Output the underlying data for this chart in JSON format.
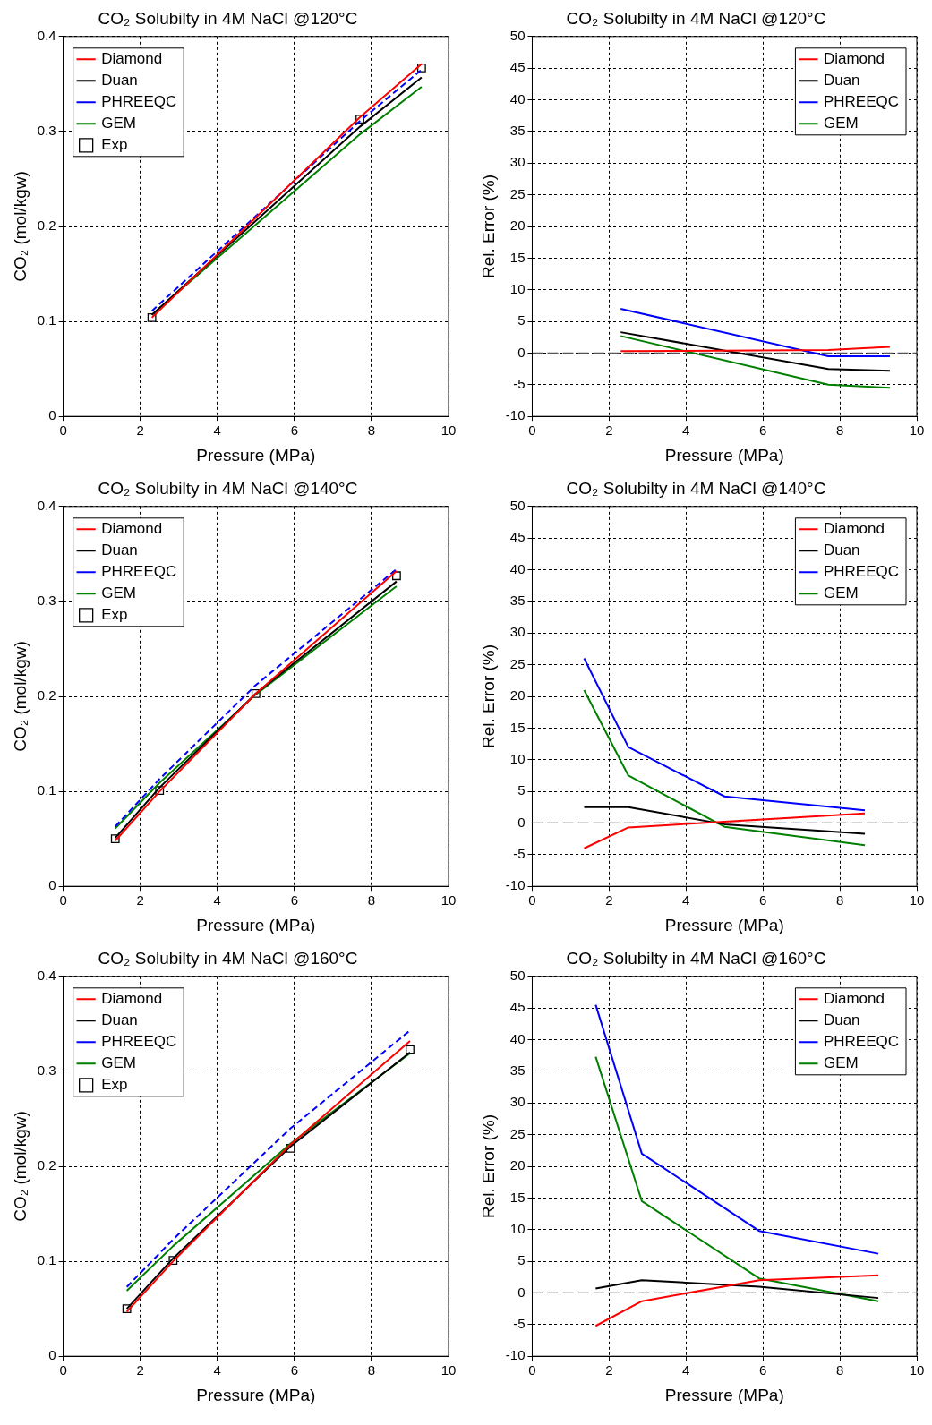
{
  "chart_data": [
    {
      "type": "line",
      "title": "CO₂ Solubilty in 4M NaCl @120°C",
      "xlabel": "Pressure (MPa)",
      "ylabel": "CO₂ (mol/kgw)",
      "x": [
        2.3,
        7.7,
        9.3
      ],
      "xlim": [
        0,
        10
      ],
      "xticks": [
        0,
        2,
        4,
        6,
        8,
        10
      ],
      "ylim": [
        0,
        0.4
      ],
      "yticks": [
        0,
        0.1,
        0.2,
        0.3,
        0.4
      ],
      "grid": true,
      "legend": "top left",
      "marker": "none",
      "series": [
        {
          "name": "Diamond",
          "color": "#ff0000",
          "values": [
            0.104,
            0.315,
            0.371
          ]
        },
        {
          "name": "Duan",
          "color": "#000000",
          "values": [
            0.107,
            0.305,
            0.357
          ]
        },
        {
          "name": "PHREEQC",
          "color": "#0000ff",
          "line_style": "dashed",
          "values": [
            0.111,
            0.311,
            0.365
          ]
        },
        {
          "name": "GEM",
          "color": "#008000",
          "values": [
            0.107,
            0.297,
            0.347
          ]
        },
        {
          "name": "Exp",
          "type": "scatter",
          "marker": "square",
          "color": "#000000",
          "values": [
            0.104,
            0.313,
            0.367
          ]
        }
      ]
    },
    {
      "type": "line",
      "title": "CO₂ Solubilty in 4M NaCl @120°C",
      "xlabel": "Pressure (MPa)",
      "ylabel": "Rel. Error (%)",
      "x": [
        2.3,
        7.7,
        9.3
      ],
      "xlim": [
        0,
        10
      ],
      "xticks": [
        0,
        2,
        4,
        6,
        8,
        10
      ],
      "ylim": [
        -10,
        50
      ],
      "yticks": [
        -10,
        -5,
        0,
        5,
        10,
        15,
        20,
        25,
        30,
        35,
        40,
        45,
        50
      ],
      "grid": true,
      "legend": "top right",
      "marker": "none",
      "ref_lines": [
        {
          "axis": "y",
          "value": 0,
          "line_style": "dashed",
          "color": "#555555"
        }
      ],
      "series": [
        {
          "name": "Diamond",
          "color": "#ff0000",
          "values": [
            0.3,
            0.5,
            1.0
          ]
        },
        {
          "name": "Duan",
          "color": "#000000",
          "values": [
            3.3,
            -2.5,
            -2.8
          ]
        },
        {
          "name": "PHREEQC",
          "color": "#0000ff",
          "values": [
            7.0,
            -0.5,
            -0.5
          ]
        },
        {
          "name": "GEM",
          "color": "#008000",
          "values": [
            2.7,
            -5.0,
            -5.5
          ]
        }
      ]
    },
    {
      "type": "line",
      "title": "CO₂ Solubilty in 4M NaCl @140°C",
      "xlabel": "Pressure (MPa)",
      "ylabel": "CO₂ (mol/kgw)",
      "x": [
        1.35,
        2.5,
        5.0,
        8.65
      ],
      "xlim": [
        0,
        10
      ],
      "xticks": [
        0,
        2,
        4,
        6,
        8,
        10
      ],
      "ylim": [
        0,
        0.4
      ],
      "yticks": [
        0,
        0.1,
        0.2,
        0.3,
        0.4
      ],
      "grid": true,
      "legend": "top left",
      "marker": "none",
      "series": [
        {
          "name": "Diamond",
          "color": "#ff0000",
          "values": [
            0.048,
            0.1,
            0.203,
            0.332
          ]
        },
        {
          "name": "Duan",
          "color": "#000000",
          "values": [
            0.051,
            0.104,
            0.203,
            0.321
          ]
        },
        {
          "name": "PHREEQC",
          "color": "#0000ff",
          "line_style": "dashed",
          "values": [
            0.063,
            0.113,
            0.212,
            0.334
          ]
        },
        {
          "name": "GEM",
          "color": "#008000",
          "values": [
            0.061,
            0.109,
            0.202,
            0.316
          ]
        },
        {
          "name": "Exp",
          "type": "scatter",
          "marker": "square",
          "color": "#000000",
          "values": [
            0.05,
            0.101,
            0.203,
            0.327
          ]
        }
      ]
    },
    {
      "type": "line",
      "title": "CO₂ Solubilty in 4M NaCl @140°C",
      "xlabel": "Pressure (MPa)",
      "ylabel": "Rel. Error (%)",
      "x": [
        1.35,
        2.5,
        5.0,
        8.65
      ],
      "xlim": [
        0,
        10
      ],
      "xticks": [
        0,
        2,
        4,
        6,
        8,
        10
      ],
      "ylim": [
        -10,
        50
      ],
      "yticks": [
        -10,
        -5,
        0,
        5,
        10,
        15,
        20,
        25,
        30,
        35,
        40,
        45,
        50
      ],
      "grid": true,
      "legend": "top right",
      "marker": "none",
      "ref_lines": [
        {
          "axis": "y",
          "value": 0,
          "line_style": "dashed",
          "color": "#555555"
        }
      ],
      "series": [
        {
          "name": "Diamond",
          "color": "#ff0000",
          "values": [
            -4.0,
            -0.7,
            0.2,
            1.5
          ]
        },
        {
          "name": "Duan",
          "color": "#000000",
          "values": [
            2.5,
            2.5,
            -0.2,
            -1.7
          ]
        },
        {
          "name": "PHREEQC",
          "color": "#0000ff",
          "values": [
            26.0,
            12.0,
            4.2,
            2.0
          ]
        },
        {
          "name": "GEM",
          "color": "#008000",
          "values": [
            21.0,
            7.5,
            -0.6,
            -3.5
          ]
        }
      ]
    },
    {
      "type": "line",
      "title": "CO₂ Solubilty in 4M NaCl @160°C",
      "xlabel": "Pressure (MPa)",
      "ylabel": "CO₂ (mol/kgw)",
      "x": [
        1.65,
        2.85,
        5.9,
        9.0
      ],
      "xlim": [
        0,
        10
      ],
      "xticks": [
        0,
        2,
        4,
        6,
        8,
        10
      ],
      "ylim": [
        0,
        0.4
      ],
      "yticks": [
        0,
        0.1,
        0.2,
        0.3,
        0.4
      ],
      "grid": true,
      "legend": "top left",
      "marker": "none",
      "series": [
        {
          "name": "Diamond",
          "color": "#ff0000",
          "values": [
            0.047,
            0.1,
            0.223,
            0.332
          ]
        },
        {
          "name": "Duan",
          "color": "#000000",
          "values": [
            0.05,
            0.103,
            0.221,
            0.32
          ]
        },
        {
          "name": "PHREEQC",
          "color": "#0000ff",
          "line_style": "dashed",
          "values": [
            0.073,
            0.123,
            0.24,
            0.343
          ]
        },
        {
          "name": "GEM",
          "color": "#008000",
          "values": [
            0.069,
            0.116,
            0.224,
            0.319
          ]
        },
        {
          "name": "Exp",
          "type": "scatter",
          "marker": "square",
          "color": "#000000",
          "values": [
            0.05,
            0.101,
            0.219,
            0.323
          ]
        }
      ]
    },
    {
      "type": "line",
      "title": "CO₂ Solubilty in 4M NaCl @160°C",
      "xlabel": "Pressure (MPa)",
      "ylabel": "Rel. Error (%)",
      "x": [
        1.65,
        2.85,
        5.9,
        9.0
      ],
      "xlim": [
        0,
        10
      ],
      "xticks": [
        0,
        2,
        4,
        6,
        8,
        10
      ],
      "ylim": [
        -10,
        50
      ],
      "yticks": [
        -10,
        -5,
        0,
        5,
        10,
        15,
        20,
        25,
        30,
        35,
        40,
        45,
        50
      ],
      "grid": true,
      "legend": "top right",
      "marker": "none",
      "ref_lines": [
        {
          "axis": "y",
          "value": 0,
          "line_style": "dashed",
          "color": "#555555"
        }
      ],
      "series": [
        {
          "name": "Diamond",
          "color": "#ff0000",
          "values": [
            -5.2,
            -1.3,
            2.0,
            2.8
          ]
        },
        {
          "name": "Duan",
          "color": "#000000",
          "values": [
            0.7,
            2.0,
            1.0,
            -0.8
          ]
        },
        {
          "name": "PHREEQC",
          "color": "#0000ff",
          "values": [
            45.5,
            22.0,
            9.8,
            6.2
          ]
        },
        {
          "name": "GEM",
          "color": "#008000",
          "values": [
            37.3,
            14.5,
            2.3,
            -1.3
          ]
        }
      ]
    }
  ]
}
